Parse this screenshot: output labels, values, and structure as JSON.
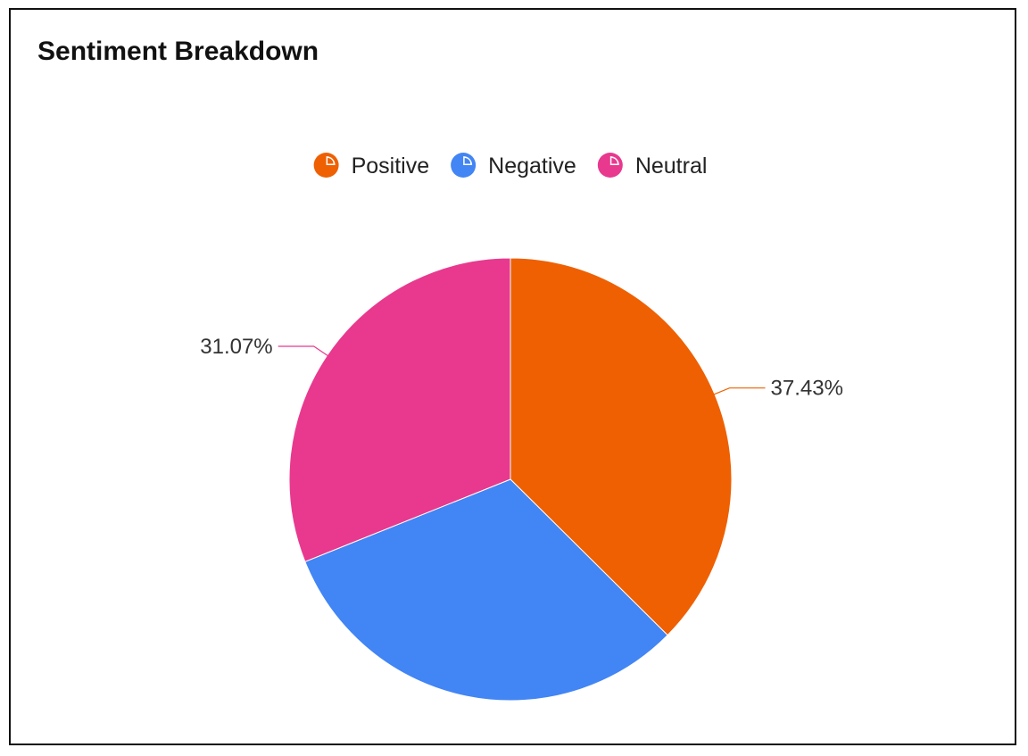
{
  "panel": {
    "title": "Sentiment Breakdown"
  },
  "chart_data": {
    "type": "pie",
    "title": "Sentiment Breakdown",
    "categories": [
      "Positive",
      "Negative",
      "Neutral"
    ],
    "values": [
      37.43,
      31.5,
      31.07
    ],
    "data_labels": [
      "37.43%",
      null,
      "31.07%"
    ],
    "colors": [
      "#EE6002",
      "#4285F4",
      "#E8398E"
    ],
    "legend": {
      "position": "top",
      "items": [
        {
          "label": "Positive",
          "icon": "pie-icon",
          "color": "#EE6002"
        },
        {
          "label": "Negative",
          "icon": "pie-icon",
          "color": "#4285F4"
        },
        {
          "label": "Neutral",
          "icon": "pie-icon",
          "color": "#E8398E"
        }
      ]
    },
    "start_angle": "12 o'clock",
    "direction": "clockwise"
  }
}
